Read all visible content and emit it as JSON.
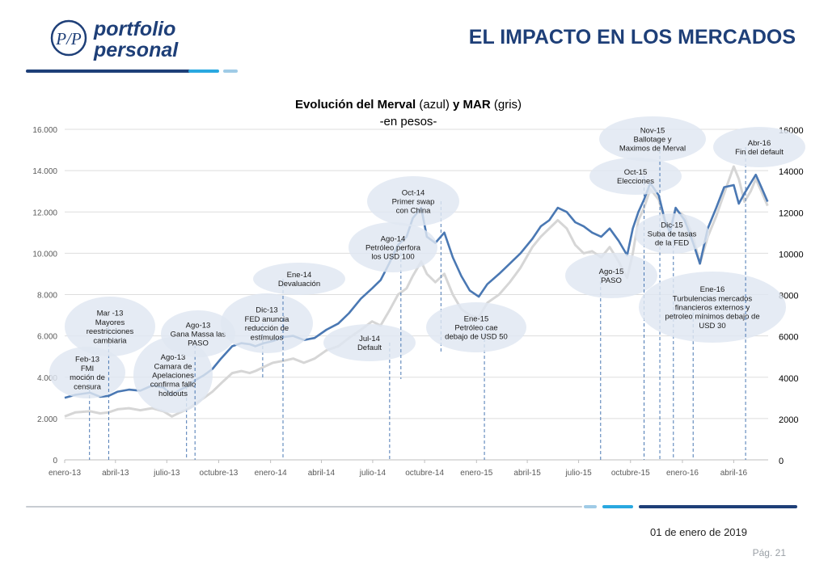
{
  "header": {
    "logo_line1": "portfolio",
    "logo_line2": "personal",
    "logo_monogram": "P/P",
    "title": "EL IMPACTO EN LOS MERCADOS"
  },
  "footer": {
    "date": "01 de enero de 2019",
    "page": "Pág. 21"
  },
  "colors": {
    "navy": "#1e3f78",
    "light_blue": "#29a8e0",
    "pale_blue": "#9fcbe6",
    "merval": "#4a78b3",
    "mar": "#d6d6d6",
    "bubble": "#dfe6f1"
  },
  "chart_data": {
    "type": "line",
    "title_part1": "Evolución del Merval",
    "title_part2": "(azul)",
    "title_part3": "y MAR",
    "title_part4": "(gris)",
    "subtitle": "-en pesos-",
    "x_tick_labels": [
      "enero-13",
      "abril-13",
      "julio-13",
      "octubre-13",
      "enero-14",
      "abril-14",
      "julio-14",
      "octubre-14",
      "enero-15",
      "abril-15",
      "julio-15",
      "octubre-15",
      "enero-16",
      "abril-16"
    ],
    "y_left_ticks": [
      "0",
      "2.000",
      "4.000",
      "6.000",
      "8.000",
      "10.000",
      "12.000",
      "14.000",
      "16.000"
    ],
    "y_right_ticks": [
      "0",
      "2000",
      "4000",
      "6000",
      "8000",
      "10000",
      "12000",
      "14000",
      "16000"
    ],
    "ylim_left": [
      0,
      16000
    ],
    "ylim_right": [
      0,
      16000
    ],
    "grid": true,
    "series": [
      {
        "x": [
          "2013-01-01",
          "2013-01-20",
          "2013-02-15",
          "2013-03-05",
          "2013-03-20",
          "2013-04-05",
          "2013-04-25",
          "2013-05-15",
          "2013-06-05",
          "2013-06-25",
          "2013-07-10",
          "2013-07-25",
          "2013-08-10",
          "2013-08-20",
          "2013-09-05",
          "2013-09-20",
          "2013-10-05",
          "2013-10-25",
          "2013-11-10",
          "2013-11-25",
          "2013-12-05",
          "2013-12-20",
          "2014-01-05",
          "2014-01-25",
          "2014-02-10",
          "2014-03-01",
          "2014-03-20",
          "2014-04-10",
          "2014-05-01",
          "2014-05-20",
          "2014-06-10",
          "2014-06-30",
          "2014-07-15",
          "2014-07-30",
          "2014-08-15",
          "2014-08-30",
          "2014-09-10",
          "2014-09-25",
          "2014-10-05",
          "2014-10-20",
          "2014-11-05",
          "2014-11-20",
          "2014-12-05",
          "2014-12-20",
          "2015-01-05",
          "2015-01-20",
          "2015-02-10",
          "2015-03-01",
          "2015-03-20",
          "2015-04-10",
          "2015-04-25",
          "2015-05-10",
          "2015-05-25",
          "2015-06-10",
          "2015-06-25",
          "2015-07-10",
          "2015-07-25",
          "2015-08-10",
          "2015-08-25",
          "2015-09-10",
          "2015-09-25",
          "2015-10-05",
          "2015-10-15",
          "2015-10-25",
          "2015-11-05",
          "2015-11-20",
          "2015-12-01",
          "2015-12-10",
          "2015-12-20",
          "2016-01-05",
          "2016-01-20",
          "2016-02-01",
          "2016-02-15",
          "2016-03-01",
          "2016-03-15",
          "2016-04-01",
          "2016-04-10",
          "2016-04-20",
          "2016-05-01",
          "2016-05-10",
          "2016-05-20",
          "2016-05-31"
        ],
        "values": [
          3000,
          3150,
          3250,
          3050,
          3100,
          3300,
          3400,
          3350,
          3600,
          3500,
          3150,
          3400,
          3600,
          3850,
          4100,
          4400,
          4900,
          5500,
          5650,
          5600,
          5500,
          5650,
          5750,
          5950,
          6000,
          5800,
          5900,
          6300,
          6600,
          7100,
          7800,
          8300,
          8700,
          9500,
          10400,
          10800,
          11700,
          12200,
          10800,
          10500,
          11000,
          9800,
          8900,
          8200,
          7900,
          8500,
          9000,
          9500,
          10000,
          10700,
          11300,
          11600,
          12200,
          12000,
          11500,
          11300,
          11000,
          10800,
          11200,
          10600,
          9900,
          11200,
          12000,
          12600,
          13400,
          12800,
          11600,
          11000,
          12200,
          11600,
          10500,
          9500,
          11200,
          12200,
          13200,
          13300,
          12400,
          12900,
          13400,
          13800,
          13200,
          12500
        ]
      },
      {
        "x": [
          "2013-01-01",
          "2013-01-20",
          "2013-02-15",
          "2013-03-05",
          "2013-03-20",
          "2013-04-05",
          "2013-04-25",
          "2013-05-15",
          "2013-06-05",
          "2013-06-25",
          "2013-07-10",
          "2013-07-25",
          "2013-08-10",
          "2013-08-20",
          "2013-09-05",
          "2013-09-20",
          "2013-10-05",
          "2013-10-25",
          "2013-11-10",
          "2013-11-25",
          "2013-12-05",
          "2013-12-20",
          "2014-01-05",
          "2014-01-25",
          "2014-02-10",
          "2014-03-01",
          "2014-03-20",
          "2014-04-10",
          "2014-05-01",
          "2014-05-20",
          "2014-06-10",
          "2014-06-30",
          "2014-07-15",
          "2014-07-30",
          "2014-08-15",
          "2014-08-30",
          "2014-09-10",
          "2014-09-25",
          "2014-10-05",
          "2014-10-20",
          "2014-11-05",
          "2014-11-20",
          "2014-12-05",
          "2014-12-20",
          "2015-01-05",
          "2015-01-20",
          "2015-02-10",
          "2015-03-01",
          "2015-03-20",
          "2015-04-10",
          "2015-04-25",
          "2015-05-10",
          "2015-05-25",
          "2015-06-10",
          "2015-06-25",
          "2015-07-10",
          "2015-07-25",
          "2015-08-10",
          "2015-08-25",
          "2015-09-10",
          "2015-09-25",
          "2015-10-05",
          "2015-10-15",
          "2015-10-25",
          "2015-11-05",
          "2015-11-20",
          "2015-12-01",
          "2015-12-10",
          "2015-12-20",
          "2016-01-05",
          "2016-01-20",
          "2016-02-01",
          "2016-02-15",
          "2016-03-01",
          "2016-03-15",
          "2016-04-01",
          "2016-04-10",
          "2016-04-20",
          "2016-05-01",
          "2016-05-10",
          "2016-05-20",
          "2016-05-31"
        ],
        "values": [
          2100,
          2300,
          2350,
          2250,
          2300,
          2450,
          2500,
          2400,
          2500,
          2350,
          2100,
          2300,
          2500,
          2700,
          3000,
          3300,
          3700,
          4200,
          4300,
          4200,
          4300,
          4500,
          4700,
          4800,
          4900,
          4700,
          4900,
          5300,
          5500,
          5900,
          6300,
          6700,
          6500,
          7200,
          8000,
          8300,
          8900,
          9600,
          9000,
          8600,
          9000,
          8000,
          7300,
          7000,
          6900,
          7600,
          8000,
          8600,
          9300,
          10300,
          10800,
          11200,
          11600,
          11200,
          10400,
          10000,
          10100,
          9800,
          10300,
          9600,
          8800,
          10000,
          11600,
          12200,
          13100,
          12600,
          11500,
          11200,
          12100,
          11800,
          10800,
          9500,
          10800,
          11800,
          12900,
          14200,
          13600,
          12500,
          13000,
          13600,
          13000,
          12300
        ]
      }
    ],
    "annotations": [
      {
        "text": [
          "Feb-13",
          "FMI",
          "moción de",
          "censura"
        ],
        "date": "2013-02-14"
      },
      {
        "text": [
          "Mar -13",
          "Mayores",
          "reestricciones",
          "cambiaria"
        ],
        "date": "2013-03-20"
      },
      {
        "text": [
          "Ago-13",
          "Camara de",
          "Apelaciones",
          "confirma fallo",
          "holdouts"
        ],
        "date": "2013-08-05"
      },
      {
        "text": [
          "Ago-13",
          "Gana Massa las",
          "PASO"
        ],
        "date": "2013-08-20"
      },
      {
        "text": [
          "Dic-13",
          "FED anuncia",
          "reducción de",
          "estímulos"
        ],
        "date": "2013-12-18"
      },
      {
        "text": [
          "Ene-14",
          "Devaluación"
        ],
        "date": "2014-01-23"
      },
      {
        "text": [
          "Jul-14",
          "Default"
        ],
        "date": "2014-07-31"
      },
      {
        "text": [
          "Ago-14",
          "Petróleo perfora",
          "los USD 100"
        ],
        "date": "2014-08-20"
      },
      {
        "text": [
          "Oct-14",
          "Primer swap",
          "con China"
        ],
        "date": "2014-10-30"
      },
      {
        "text": [
          "Ene-15",
          "Petróleo cae",
          "debajo de USD 50"
        ],
        "date": "2015-01-15"
      },
      {
        "text": [
          "Ago-15",
          "PASO"
        ],
        "date": "2015-08-09"
      },
      {
        "text": [
          "Oct-15",
          "Elecciones"
        ],
        "date": "2015-10-25"
      },
      {
        "text": [
          "Nov-15",
          "Ballotage y",
          "Maximos de Merval"
        ],
        "date": "2015-11-22"
      },
      {
        "text": [
          "Dic-15",
          "Suba de tasas",
          "de la FED"
        ],
        "date": "2015-12-16"
      },
      {
        "text": [
          "Ene-16",
          "Turbulencias mercados",
          "financieros externos y",
          "petroleo mínimos debajo de",
          "USD 30"
        ],
        "date": "2016-01-20"
      },
      {
        "text": [
          "Abr-16",
          "Fin del default"
        ],
        "date": "2016-04-22"
      }
    ]
  }
}
